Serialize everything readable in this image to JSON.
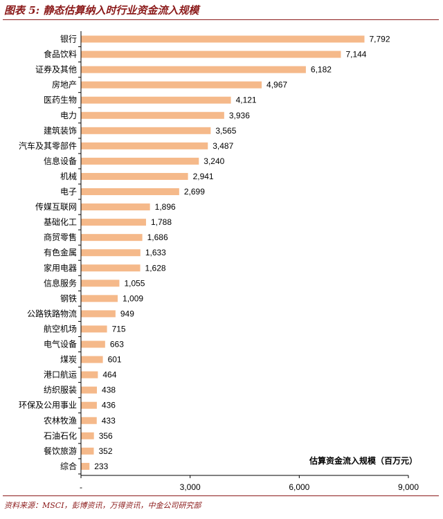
{
  "header": {
    "title": "图表 5:  静态估算纳入时行业资金流入规模"
  },
  "footer": {
    "source": "资料来源：MSCI，彭博资讯，万得资讯，中金公司研究部"
  },
  "chart_data": {
    "type": "bar",
    "orientation": "horizontal",
    "title": "图表 5:  静态估算纳入时行业资金流入规模",
    "xlabel": "估算资金流入规模（百万元）",
    "ylabel": "",
    "xlim": [
      0,
      9000
    ],
    "xticks": [
      0,
      3000,
      6000,
      9000
    ],
    "xtick_labels": [
      "-",
      "3,000",
      "6,000",
      "9,000"
    ],
    "bar_color": "#f5b98a",
    "categories": [
      "银行",
      "食品饮料",
      "证券及其他",
      "房地产",
      "医药生物",
      "电力",
      "建筑装饰",
      "汽车及其零部件",
      "信息设备",
      "机械",
      "电子",
      "传媒互联网",
      "基础化工",
      "商贸零售",
      "有色金属",
      "家用电器",
      "信息服务",
      "钢铁",
      "公路铁路物流",
      "航空机场",
      "电气设备",
      "煤炭",
      "港口航运",
      "纺织服装",
      "环保及公用事业",
      "农林牧渔",
      "石油石化",
      "餐饮旅游",
      "综合"
    ],
    "values": [
      7792,
      7144,
      6182,
      4967,
      4121,
      3936,
      3565,
      3487,
      3240,
      2941,
      2699,
      1896,
      1788,
      1686,
      1633,
      1628,
      1055,
      1009,
      949,
      715,
      663,
      601,
      464,
      438,
      436,
      433,
      356,
      352,
      233
    ],
    "value_labels": [
      "7,792",
      "7,144",
      "6,182",
      "4,967",
      "4,121",
      "3,936",
      "3,565",
      "3,487",
      "3,240",
      "2,941",
      "2,699",
      "1,896",
      "1,788",
      "1,686",
      "1,633",
      "1,628",
      "1,055",
      "1,009",
      "949",
      "715",
      "663",
      "601",
      "464",
      "438",
      "436",
      "433",
      "356",
      "352",
      "233"
    ],
    "grid": false,
    "legend": "none"
  }
}
